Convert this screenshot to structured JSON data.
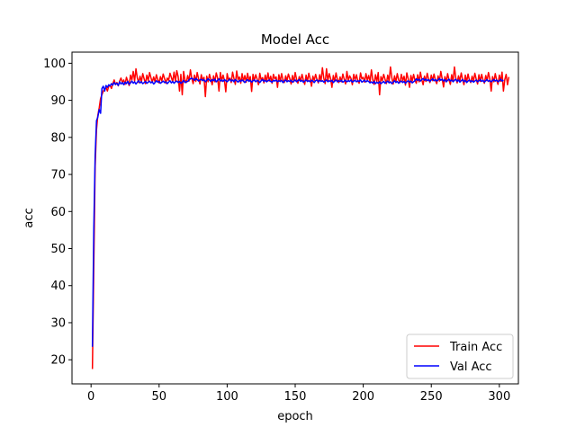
{
  "chart_data": {
    "type": "line",
    "title": "Model Acc",
    "xlabel": "epoch",
    "ylabel": "acc",
    "xlim": [
      -14,
      314
    ],
    "ylim": [
      13.5,
      103
    ],
    "xticks": [
      0,
      50,
      100,
      150,
      200,
      250,
      300
    ],
    "yticks": [
      20,
      30,
      40,
      50,
      60,
      70,
      80,
      90,
      100
    ],
    "legend_position": "lower-right",
    "series": [
      {
        "name": "Train Acc",
        "color": "#ff0000",
        "x_start": 1,
        "values": [
          17.5,
          45.0,
          72.0,
          82.0,
          86.0,
          88.0,
          90.5,
          91.5,
          92.5,
          93.0,
          93.5,
          92.5,
          93.8,
          94.0,
          93.2,
          94.5,
          95.5,
          94.2,
          94.8,
          93.9,
          95.2,
          96.0,
          94.8,
          95.5,
          94.3,
          96.2,
          95.1,
          94.0,
          96.8,
          95.5,
          97.8,
          95.2,
          98.5,
          96.0,
          94.8,
          96.5,
          95.0,
          97.2,
          95.8,
          94.5,
          96.8,
          95.3,
          97.5,
          96.1,
          94.9,
          96.3,
          95.0,
          96.9,
          95.6,
          94.7,
          96.4,
          95.2,
          97.1,
          95.9,
          94.6,
          96.0,
          95.4,
          97.3,
          96.2,
          95.0,
          97.6,
          95.1,
          98.0,
          96.4,
          92.5,
          97.0,
          91.5,
          97.8,
          95.5,
          94.8,
          96.7,
          95.2,
          98.2,
          96.0,
          94.5,
          96.8,
          95.1,
          97.5,
          95.8,
          94.4,
          96.9,
          95.5,
          96.2,
          91.0,
          96.5,
          95.0,
          97.0,
          95.7,
          94.2,
          96.6,
          95.0,
          97.4,
          96.0,
          92.5,
          97.5,
          95.2,
          96.8,
          95.4,
          92.3,
          97.2,
          95.5,
          96.0,
          94.8,
          97.6,
          95.9,
          94.3,
          97.9,
          95.6,
          96.3,
          94.6,
          97.2,
          95.1,
          96.7,
          94.9,
          97.3,
          95.4,
          96.4,
          92.4,
          97.0,
          95.3,
          96.9,
          95.8,
          94.2,
          97.3,
          95.5,
          96.1,
          94.7,
          96.8,
          95.0,
          97.4,
          95.2,
          96.5,
          94.6,
          97.0,
          95.8,
          96.3,
          93.5,
          96.9,
          95.1,
          97.2,
          95.6,
          94.8,
          96.6,
          95.3,
          97.1,
          95.9,
          94.4,
          96.7,
          95.0,
          97.5,
          95.7,
          94.6,
          96.4,
          95.2,
          97.0,
          95.5,
          94.3,
          96.8,
          95.1,
          97.3,
          95.8,
          93.8,
          96.5,
          95.4,
          97.0,
          95.6,
          94.7,
          96.9,
          95.2,
          98.8,
          96.0,
          94.5,
          98.5,
          95.3,
          97.2,
          95.9,
          93.5,
          96.7,
          95.1,
          97.4,
          95.6,
          94.8,
          96.3,
          95.0,
          97.1,
          95.7,
          94.4,
          97.8,
          95.3,
          96.6,
          95.9,
          94.2,
          97.0,
          95.5,
          96.9,
          95.2,
          94.6,
          97.4,
          95.8,
          96.2,
          94.9,
          97.2,
          95.4,
          96.7,
          95.0,
          98.2,
          95.6,
          94.3,
          96.9,
          95.1,
          97.5,
          91.5,
          96.4,
          95.3,
          97.0,
          95.7,
          94.5,
          96.8,
          95.2,
          99.0,
          96.1,
          94.4,
          96.6,
          95.0,
          97.2,
          95.5,
          94.8,
          97.0,
          95.3,
          96.5,
          94.1,
          97.4,
          95.8,
          93.5,
          96.7,
          95.2,
          97.0,
          95.4,
          94.6,
          96.9,
          95.0,
          97.6,
          95.6,
          94.2,
          96.5,
          95.1,
          97.3,
          95.7,
          94.8,
          96.8,
          95.3,
          97.1,
          95.4,
          94.5,
          96.6,
          95.2,
          97.8,
          95.8,
          93.6,
          96.4,
          95.0,
          97.2,
          95.5,
          94.3,
          96.9,
          95.1,
          99.0,
          96.0,
          94.7,
          96.6,
          95.3,
          97.4,
          95.6,
          94.2,
          96.8,
          95.0,
          97.1,
          95.4,
          94.8,
          96.5,
          95.2,
          97.3,
          95.7,
          94.4,
          96.9,
          95.1,
          97.0,
          95.5,
          94.6,
          96.7,
          95.3,
          97.5,
          95.8,
          92.5,
          96.4,
          95.0,
          97.2,
          95.5,
          94.3,
          96.8,
          95.1,
          97.6,
          92.5,
          95.6,
          97.0,
          94.2,
          96.3
        ]
      },
      {
        "name": "Val Acc",
        "color": "#0000ff",
        "x_start": 1,
        "values": [
          23.5,
          55.0,
          75.0,
          84.5,
          85.5,
          87.5,
          86.5,
          93.2,
          93.8,
          92.5,
          94.0,
          93.5,
          94.2,
          93.9,
          94.5,
          94.1,
          94.8,
          94.3,
          94.6,
          94.0,
          95.0,
          94.4,
          94.8,
          94.2,
          94.9,
          94.5,
          95.1,
          94.3,
          94.7,
          95.2,
          94.6,
          95.0,
          94.4,
          94.9,
          95.3,
          94.7,
          95.0,
          94.5,
          94.8,
          95.1,
          94.6,
          94.9,
          95.2,
          94.7,
          95.0,
          94.4,
          94.8,
          95.3,
          94.9,
          95.1,
          94.6,
          94.9,
          95.2,
          94.8,
          95.0,
          94.5,
          94.9,
          95.3,
          94.7,
          95.1,
          94.6,
          95.0,
          95.2,
          94.8,
          95.1,
          94.6,
          94.9,
          95.4,
          94.8,
          95.0,
          95.1,
          95.5,
          95.8,
          96.0,
          95.7,
          95.4,
          95.9,
          95.6,
          95.2,
          95.5,
          95.7,
          95.3,
          95.6,
          95.0,
          95.4,
          95.8,
          95.5,
          95.1,
          95.6,
          95.3,
          95.7,
          95.0,
          95.4,
          95.8,
          95.2,
          95.5,
          95.1,
          95.6,
          95.3,
          95.0,
          95.4,
          95.7,
          95.2,
          95.5,
          95.0,
          95.6,
          95.3,
          94.9,
          95.4,
          95.1,
          95.5,
          95.2,
          94.8,
          95.3,
          95.6,
          95.1,
          95.4,
          94.9,
          95.3,
          95.5,
          95.0,
          95.4,
          95.2,
          94.8,
          95.3,
          95.6,
          95.1,
          95.4,
          95.0,
          95.3,
          95.5,
          95.1,
          94.9,
          95.4,
          95.2,
          95.5,
          95.0,
          95.3,
          95.1,
          95.4,
          94.8,
          95.2,
          95.5,
          95.0,
          95.3,
          95.1,
          95.4,
          94.9,
          95.2,
          95.5,
          95.0,
          95.3,
          95.6,
          95.1,
          95.4,
          94.9,
          95.2,
          95.5,
          95.1,
          95.3,
          95.0,
          95.4,
          95.2,
          94.8,
          95.3,
          95.5,
          95.0,
          95.4,
          95.1,
          95.3,
          94.9,
          95.2,
          95.5,
          95.0,
          95.3,
          95.1,
          95.4,
          94.8,
          95.2,
          95.5,
          95.0,
          95.3,
          95.1,
          95.4,
          94.9,
          95.2,
          95.4,
          95.0,
          95.3,
          95.1,
          95.5,
          94.9,
          95.2,
          95.4,
          95.0,
          95.3,
          95.1,
          95.5,
          94.9,
          95.2,
          95.4,
          95.0,
          95.3,
          95.1,
          94.7,
          95.0,
          94.6,
          95.1,
          94.5,
          94.9,
          94.6,
          95.0,
          94.5,
          94.8,
          95.1,
          94.6,
          94.9,
          95.2,
          94.7,
          95.0,
          94.5,
          94.9,
          95.3,
          94.8,
          95.1,
          94.6,
          95.0,
          95.2,
          94.8,
          95.1,
          94.6,
          95.0,
          95.3,
          94.9,
          95.2,
          94.7,
          95.0,
          95.3,
          95.8,
          95.4,
          95.7,
          95.2,
          95.6,
          95.9,
          95.4,
          95.7,
          95.3,
          95.6,
          95.1,
          95.5,
          95.8,
          95.3,
          95.6,
          95.2,
          95.5,
          95.9,
          95.4,
          95.7,
          95.2,
          95.6,
          95.0,
          95.4,
          95.7,
          95.2,
          95.5,
          95.0,
          95.4,
          95.7,
          95.1,
          95.5,
          94.9,
          95.3,
          95.6,
          95.0,
          95.4,
          94.8,
          95.2,
          95.5,
          95.0,
          95.3,
          94.9,
          95.2,
          95.5,
          95.0,
          95.3,
          95.6,
          95.1,
          95.4,
          94.9,
          95.3,
          95.6,
          95.1,
          95.4,
          95.0,
          95.3,
          95.6,
          95.2,
          95.5,
          95.0,
          95.3,
          95.7,
          95.2,
          95.5
        ]
      }
    ]
  }
}
